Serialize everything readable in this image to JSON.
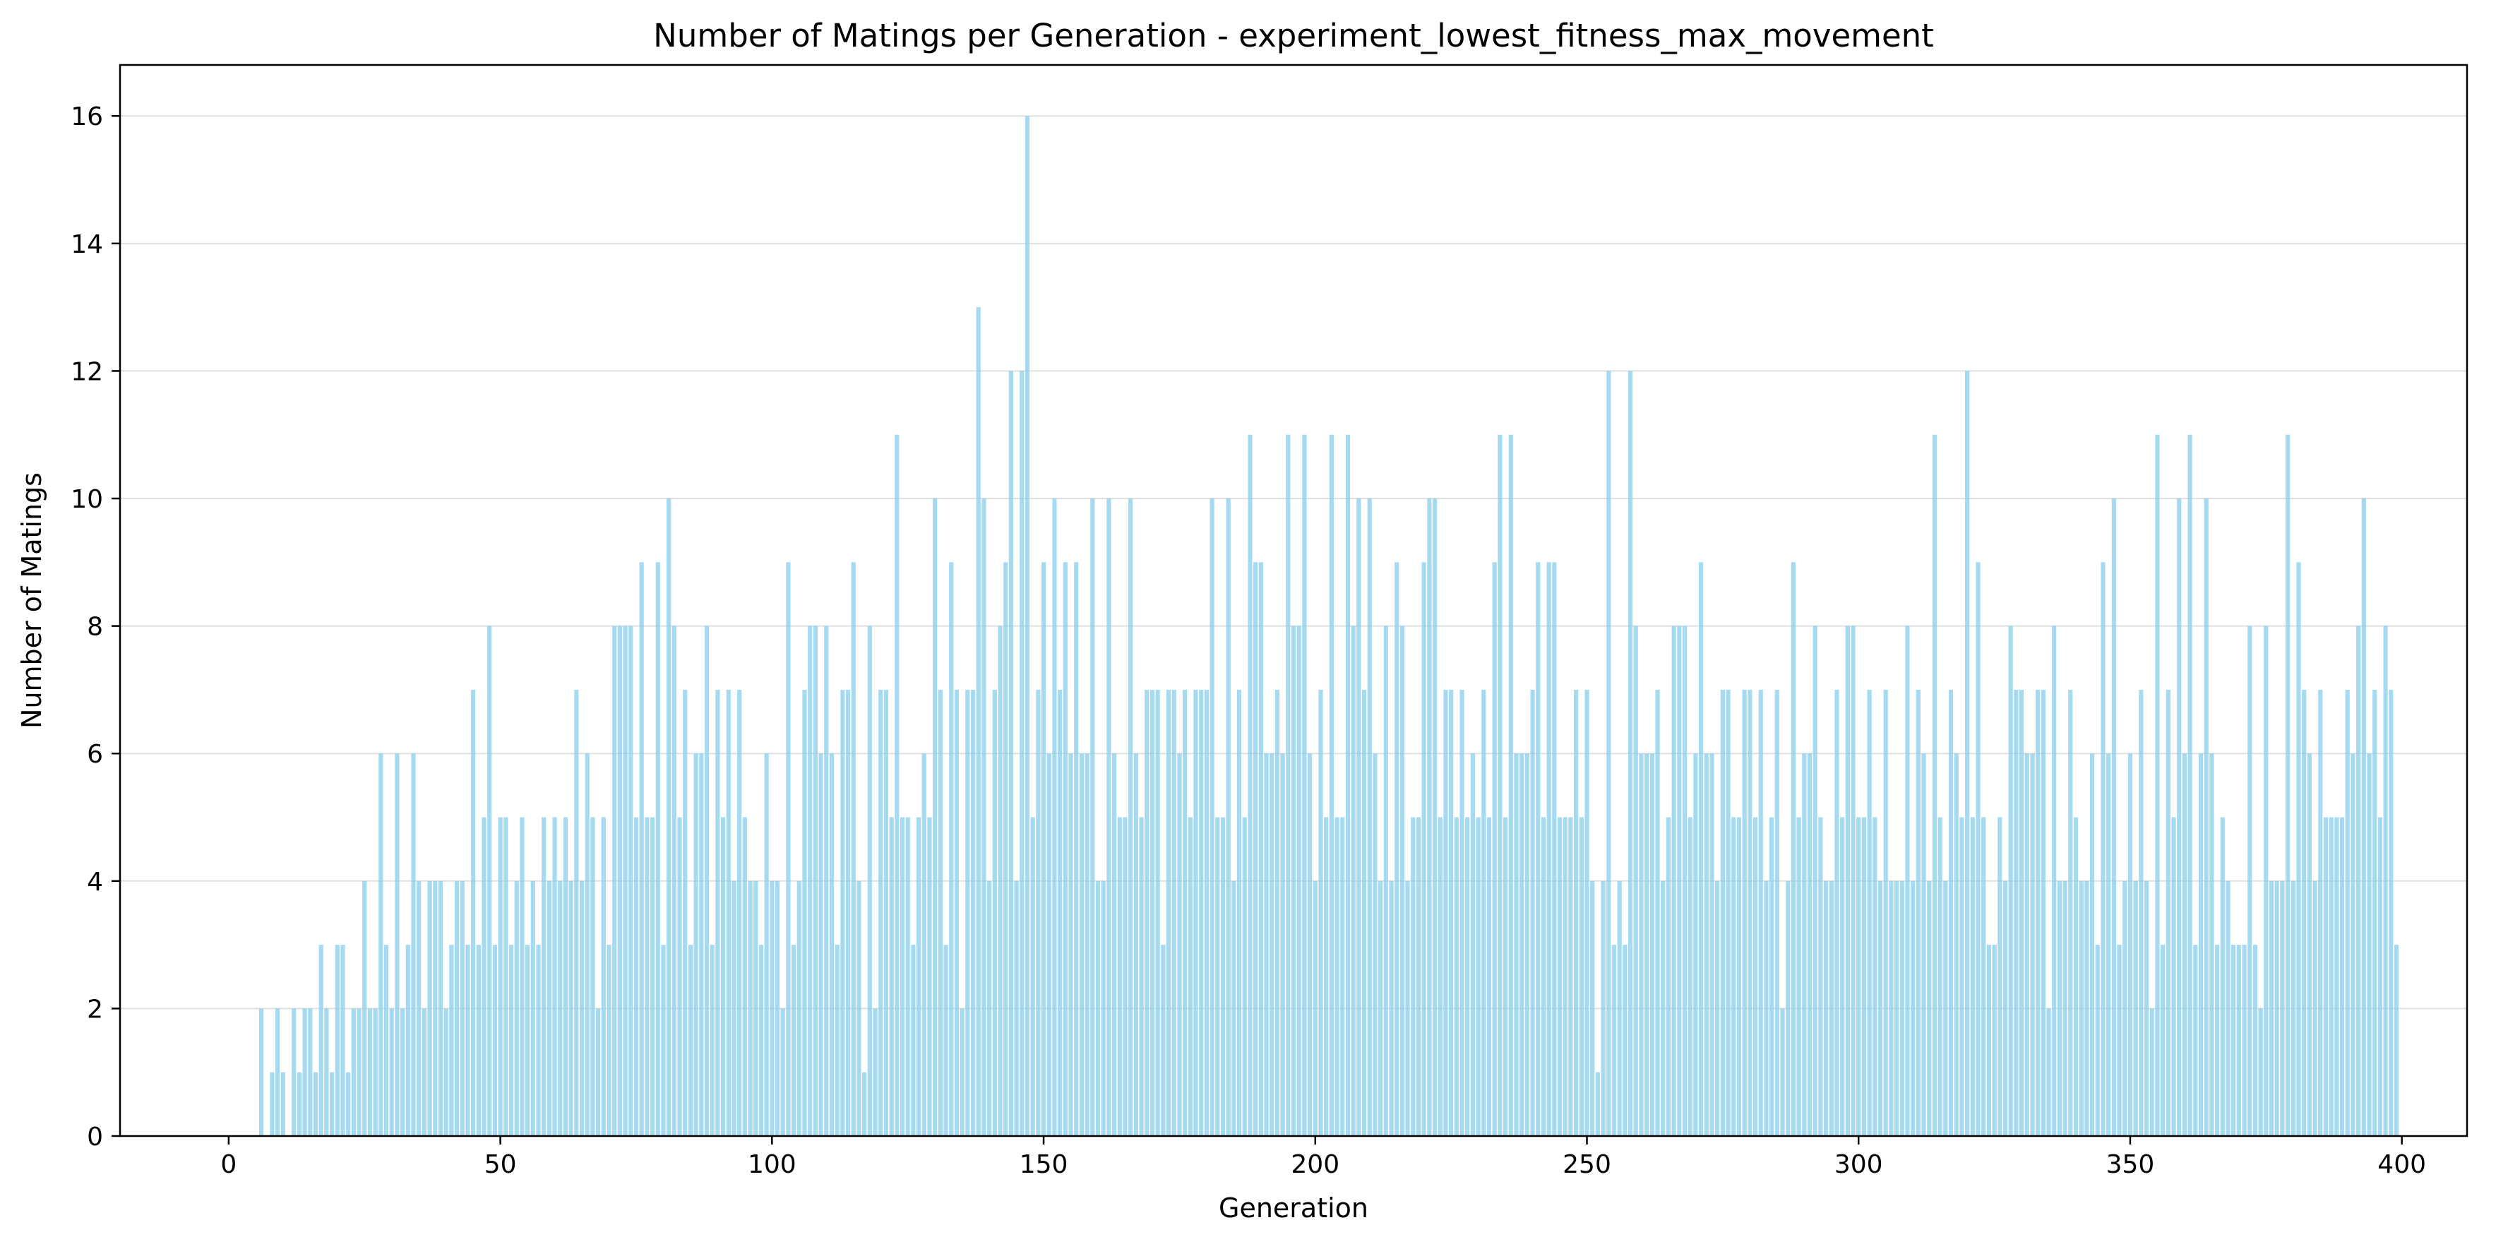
{
  "chart_data": {
    "type": "bar",
    "title": "Number of Matings per Generation - experiment_lowest_fitness_max_movement",
    "xlabel": "Generation",
    "ylabel": "Number of Matings",
    "xlim": [
      -20,
      412
    ],
    "ylim": [
      0,
      16.8
    ],
    "xticks": [
      0,
      50,
      100,
      150,
      200,
      250,
      300,
      350,
      400
    ],
    "yticks": [
      0,
      2,
      4,
      6,
      8,
      10,
      12,
      14,
      16
    ],
    "grid": {
      "axis": "y",
      "visible": true
    },
    "legend": null,
    "bar_color": "#87ceeb",
    "x_start": 0,
    "values": [
      0,
      0,
      0,
      0,
      0,
      0,
      2,
      0,
      1,
      2,
      1,
      0,
      2,
      1,
      2,
      2,
      1,
      3,
      2,
      1,
      3,
      3,
      1,
      2,
      2,
      4,
      2,
      2,
      6,
      3,
      2,
      6,
      2,
      3,
      6,
      4,
      2,
      4,
      4,
      4,
      2,
      3,
      4,
      4,
      3,
      7,
      3,
      5,
      8,
      3,
      5,
      5,
      3,
      4,
      5,
      3,
      4,
      3,
      5,
      4,
      5,
      4,
      5,
      4,
      7,
      4,
      6,
      5,
      2,
      5,
      3,
      8,
      8,
      8,
      8,
      5,
      9,
      5,
      5,
      9,
      3,
      10,
      8,
      5,
      7,
      3,
      6,
      6,
      8,
      3,
      7,
      5,
      7,
      4,
      7,
      5,
      4,
      4,
      3,
      6,
      4,
      4,
      2,
      9,
      3,
      4,
      7,
      8,
      8,
      6,
      8,
      6,
      3,
      7,
      7,
      9,
      4,
      1,
      8,
      2,
      7,
      7,
      5,
      11,
      5,
      5,
      3,
      5,
      6,
      5,
      10,
      7,
      3,
      9,
      7,
      2,
      7,
      7,
      13,
      10,
      4,
      7,
      8,
      9,
      12,
      4,
      12,
      16,
      5,
      7,
      9,
      6,
      10,
      7,
      9,
      6,
      9,
      6,
      6,
      10,
      4,
      4,
      10,
      6,
      5,
      5,
      10,
      6,
      5,
      7,
      7,
      7,
      3,
      7,
      7,
      6,
      7,
      5,
      7,
      7,
      7,
      10,
      5,
      5,
      10,
      4,
      7,
      5,
      11,
      9,
      9,
      6,
      6,
      7,
      6,
      11,
      8,
      8,
      11,
      6,
      4,
      7,
      5,
      11,
      5,
      5,
      11,
      8,
      10,
      7,
      10,
      6,
      4,
      8,
      4,
      9,
      8,
      4,
      5,
      5,
      9,
      10,
      10,
      5,
      7,
      7,
      5,
      7,
      5,
      6,
      5,
      7,
      5,
      9,
      11,
      5,
      11,
      6,
      6,
      6,
      7,
      9,
      5,
      9,
      9,
      5,
      5,
      5,
      7,
      5,
      7,
      4,
      1,
      4,
      12,
      3,
      4,
      3,
      12,
      8,
      6,
      6,
      6,
      7,
      4,
      5,
      8,
      8,
      8,
      5,
      6,
      9,
      6,
      6,
      4,
      7,
      7,
      5,
      5,
      7,
      7,
      5,
      7,
      4,
      5,
      7,
      2,
      4,
      9,
      5,
      6,
      6,
      8,
      5,
      4,
      4,
      7,
      5,
      8,
      8,
      5,
      5,
      7,
      5,
      4,
      7,
      4,
      4,
      4,
      8,
      4,
      7,
      6,
      4,
      11,
      5,
      4,
      7,
      6,
      5,
      12,
      5,
      9,
      5,
      3,
      3,
      5,
      4,
      8,
      7,
      7,
      6,
      6,
      7,
      7,
      2,
      8,
      4,
      4,
      7,
      5,
      4,
      4,
      6,
      3,
      9,
      6,
      10,
      3,
      4,
      6,
      4,
      7,
      4,
      2,
      11,
      3,
      7,
      5,
      10,
      6,
      11,
      3,
      6,
      10,
      6,
      3,
      5,
      4,
      3,
      3,
      3,
      8,
      3,
      2,
      8,
      4,
      4,
      4,
      11,
      4,
      9,
      7,
      6,
      4,
      7,
      5,
      5,
      5,
      5,
      7,
      6,
      8,
      10,
      6,
      7,
      5,
      8,
      7,
      3
    ]
  }
}
